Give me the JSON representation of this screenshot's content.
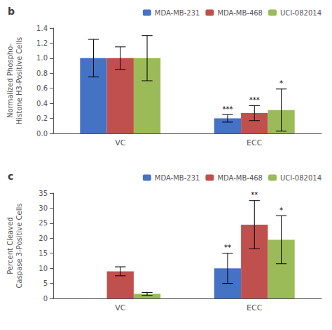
{
  "chart_data": [
    {
      "type": "bar",
      "title": "b",
      "ylabel": "Normalized Phospho-\nHistone H3-Positive Cells",
      "categories": [
        "VC",
        "ECC"
      ],
      "series": [
        {
          "name": "MDA-MB-231",
          "color": "#4472c4",
          "values": [
            1.0,
            0.2
          ],
          "errors": [
            0.25,
            0.05
          ],
          "significance": [
            null,
            "***"
          ]
        },
        {
          "name": "MDA-MB-468",
          "color": "#c0504d",
          "values": [
            1.0,
            0.27
          ],
          "errors": [
            0.15,
            0.1
          ],
          "significance": [
            null,
            "***"
          ]
        },
        {
          "name": "UCI-082014",
          "color": "#9bbb59",
          "values": [
            1.0,
            0.31
          ],
          "errors": [
            0.3,
            0.28
          ],
          "significance": [
            null,
            "*"
          ]
        }
      ],
      "ylim": [
        0,
        1.4
      ],
      "yticks": [
        {
          "value": 0,
          "label": "0.0"
        },
        0.2,
        0.4,
        0.6,
        0.8,
        {
          "value": 1.0,
          "label": "1.0"
        },
        1.2,
        1.4
      ],
      "grid": false,
      "legend": "upper right"
    },
    {
      "type": "bar",
      "title": "c",
      "ylabel": "Percent Cleaved\nCaspase 3-Positive Cells",
      "categories": [
        "VC",
        "ECC"
      ],
      "series": [
        {
          "name": "MDA-MB-231",
          "color": "#4472c4",
          "values": [
            0.0,
            10.0
          ],
          "errors": [
            0.0,
            5.0
          ],
          "significance": [
            null,
            "**"
          ]
        },
        {
          "name": "MDA-MB-468",
          "color": "#c0504d",
          "values": [
            9.0,
            24.5
          ],
          "errors": [
            1.5,
            8.0
          ],
          "significance": [
            null,
            "**"
          ]
        },
        {
          "name": "UCI-082014",
          "color": "#9bbb59",
          "values": [
            1.5,
            19.5
          ],
          "errors": [
            0.5,
            8.0
          ],
          "significance": [
            null,
            "*"
          ]
        }
      ],
      "ylim": [
        0,
        35
      ],
      "yticks": [
        0,
        5,
        10,
        15,
        20,
        25,
        30,
        35
      ],
      "grid": false,
      "legend": "upper right"
    }
  ]
}
